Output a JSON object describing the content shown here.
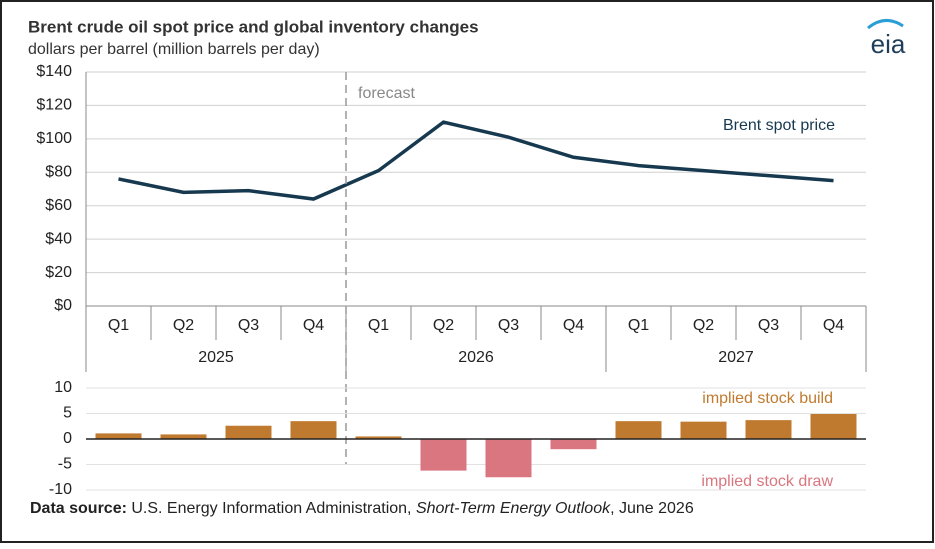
{
  "chart_data": [
    {
      "type": "line",
      "title": "Brent crude oil spot price and global inventory changes",
      "subtitle": "dollars per barrel (million barrels per day)",
      "categories": [
        "Q1",
        "Q2",
        "Q3",
        "Q4",
        "Q1",
        "Q2",
        "Q3",
        "Q4",
        "Q1",
        "Q2",
        "Q3",
        "Q4"
      ],
      "years": [
        "2025",
        "2026",
        "2027"
      ],
      "series": [
        {
          "name": "Brent spot price",
          "color": "#17394f",
          "values": [
            76,
            68,
            69,
            64,
            81,
            110,
            101,
            89,
            84,
            81,
            78,
            75
          ]
        }
      ],
      "ylim": [
        0,
        140
      ],
      "yticks": [
        {
          "value": 0,
          "label": "$0"
        },
        {
          "value": 20,
          "label": "$20"
        },
        {
          "value": 40,
          "label": "$40"
        },
        {
          "value": 60,
          "label": "$60"
        },
        {
          "value": 80,
          "label": "$80"
        },
        {
          "value": 100,
          "label": "$100"
        },
        {
          "value": 120,
          "label": "$120"
        },
        {
          "value": 140,
          "label": "$140"
        }
      ],
      "grid": true,
      "forecast_label": "forecast"
    },
    {
      "type": "bar",
      "values": [
        1.1,
        0.9,
        2.6,
        3.5,
        0.5,
        -6.2,
        -7.5,
        -2.0,
        3.5,
        3.4,
        3.7,
        4.9
      ],
      "positive_color": "#c07a2f",
      "negative_color": "#d9767f",
      "positive_label": "implied stock build",
      "negative_label": "implied stock draw",
      "ylim": [
        -10,
        10
      ],
      "yticks": [
        10,
        5,
        0,
        -5,
        -10
      ],
      "grid": true
    }
  ],
  "source": {
    "label": "Data source:",
    "text": " U.S. Energy Information Administration, ",
    "publication": "Short-Term Energy Outlook",
    "date": ", June 2026"
  },
  "logo": "eia"
}
